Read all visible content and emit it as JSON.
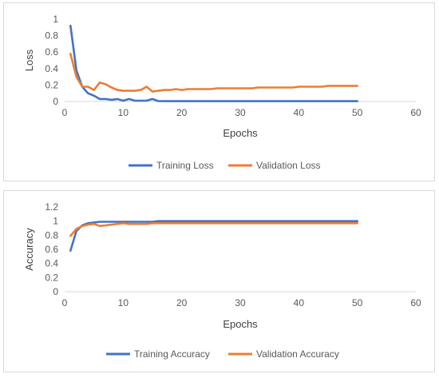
{
  "charts": [
    {
      "type": "line",
      "xlabel": "Epochs",
      "ylabel": "Loss",
      "xlim": [
        0,
        60
      ],
      "ylim": [
        0,
        1
      ],
      "xticks": [
        0,
        10,
        20,
        30,
        40,
        50,
        60
      ],
      "yticks": [
        0,
        0.2,
        0.4,
        0.6,
        0.8,
        1
      ],
      "ytick_labels": [
        "0",
        "0.2",
        "0.4",
        "0.6",
        "0.8",
        "1"
      ],
      "grid": false,
      "legend_position": "bottom",
      "x": [
        1,
        2,
        3,
        4,
        5,
        6,
        7,
        8,
        9,
        10,
        11,
        12,
        13,
        14,
        15,
        16,
        17,
        18,
        19,
        20,
        21,
        22,
        23,
        24,
        25,
        26,
        27,
        28,
        29,
        30,
        31,
        32,
        33,
        34,
        35,
        36,
        37,
        38,
        39,
        40,
        41,
        42,
        43,
        44,
        45,
        46,
        47,
        48,
        49,
        50
      ],
      "series": [
        {
          "name": "Training Loss",
          "color": "#4472c4",
          "values": [
            0.92,
            0.38,
            0.18,
            0.1,
            0.07,
            0.03,
            0.03,
            0.02,
            0.03,
            0.01,
            0.03,
            0.01,
            0.01,
            0.01,
            0.03,
            0.005,
            0.004,
            0.004,
            0.004,
            0.004,
            0.004,
            0.004,
            0.004,
            0.004,
            0.004,
            0.004,
            0.004,
            0.004,
            0.004,
            0.004,
            0.004,
            0.004,
            0.004,
            0.004,
            0.004,
            0.004,
            0.004,
            0.004,
            0.004,
            0.004,
            0.004,
            0.004,
            0.004,
            0.004,
            0.004,
            0.004,
            0.004,
            0.004,
            0.004,
            0.004
          ]
        },
        {
          "name": "Validation Loss",
          "color": "#ed7d31",
          "values": [
            0.58,
            0.3,
            0.18,
            0.18,
            0.14,
            0.23,
            0.21,
            0.17,
            0.14,
            0.13,
            0.13,
            0.13,
            0.14,
            0.18,
            0.12,
            0.13,
            0.14,
            0.14,
            0.15,
            0.14,
            0.15,
            0.15,
            0.15,
            0.15,
            0.15,
            0.16,
            0.16,
            0.16,
            0.16,
            0.16,
            0.16,
            0.16,
            0.17,
            0.17,
            0.17,
            0.17,
            0.17,
            0.17,
            0.17,
            0.18,
            0.18,
            0.18,
            0.18,
            0.18,
            0.19,
            0.19,
            0.19,
            0.19,
            0.19,
            0.19
          ]
        }
      ]
    },
    {
      "type": "line",
      "xlabel": "Epochs",
      "ylabel": "Accuracy",
      "xlim": [
        0,
        60
      ],
      "ylim": [
        0,
        1.2
      ],
      "xticks": [
        0,
        10,
        20,
        30,
        40,
        50,
        60
      ],
      "yticks": [
        0,
        0.2,
        0.4,
        0.6,
        0.8,
        1,
        1.2
      ],
      "ytick_labels": [
        "0",
        "0.2",
        "0.4",
        "0.6",
        "0.8",
        "1",
        "1.2"
      ],
      "grid": false,
      "legend_position": "bottom",
      "x": [
        1,
        2,
        3,
        4,
        5,
        6,
        7,
        8,
        9,
        10,
        11,
        12,
        13,
        14,
        15,
        16,
        17,
        18,
        19,
        20,
        21,
        22,
        23,
        24,
        25,
        26,
        27,
        28,
        29,
        30,
        31,
        32,
        33,
        34,
        35,
        36,
        37,
        38,
        39,
        40,
        41,
        42,
        43,
        44,
        45,
        46,
        47,
        48,
        49,
        50
      ],
      "series": [
        {
          "name": "Training Accuracy",
          "color": "#4472c4",
          "values": [
            0.58,
            0.86,
            0.94,
            0.97,
            0.98,
            0.99,
            0.99,
            0.99,
            0.99,
            0.99,
            0.99,
            0.99,
            0.99,
            0.99,
            0.99,
            1,
            1,
            1,
            1,
            1,
            1,
            1,
            1,
            1,
            1,
            1,
            1,
            1,
            1,
            1,
            1,
            1,
            1,
            1,
            1,
            1,
            1,
            1,
            1,
            1,
            1,
            1,
            1,
            1,
            1,
            1,
            1,
            1,
            1,
            1
          ]
        },
        {
          "name": "Validation Accuracy",
          "color": "#ed7d31",
          "values": [
            0.79,
            0.89,
            0.93,
            0.95,
            0.96,
            0.93,
            0.94,
            0.95,
            0.96,
            0.97,
            0.96,
            0.96,
            0.96,
            0.96,
            0.97,
            0.97,
            0.97,
            0.97,
            0.97,
            0.97,
            0.97,
            0.97,
            0.97,
            0.97,
            0.97,
            0.97,
            0.97,
            0.97,
            0.97,
            0.97,
            0.97,
            0.97,
            0.97,
            0.97,
            0.97,
            0.97,
            0.97,
            0.97,
            0.97,
            0.97,
            0.97,
            0.97,
            0.97,
            0.97,
            0.97,
            0.97,
            0.97,
            0.97,
            0.97,
            0.97
          ]
        }
      ]
    }
  ]
}
